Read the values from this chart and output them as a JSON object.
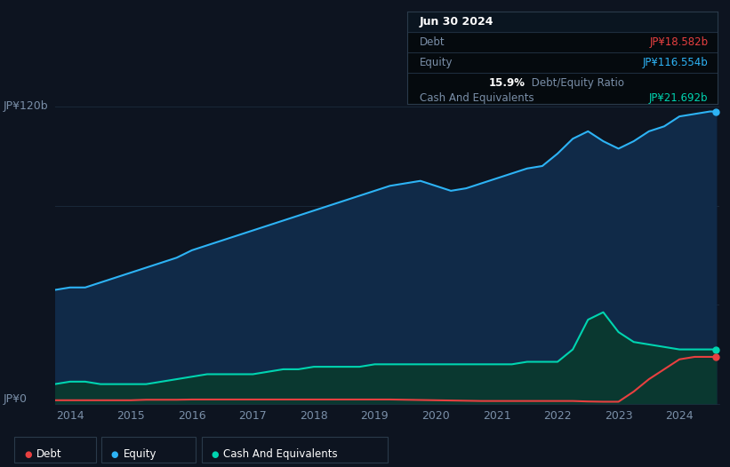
{
  "background_color": "#0d1420",
  "plot_bg_color": "#0d1420",
  "title_box": {
    "date": "Jun 30 2024",
    "debt_label": "Debt",
    "debt_value": "JP¥18.582b",
    "equity_label": "Equity",
    "equity_value": "JP¥116.554b",
    "ratio_value": "15.9%",
    "ratio_label": " Debt/Equity Ratio",
    "cash_label": "Cash And Equivalents",
    "cash_value": "JP¥21.692b"
  },
  "y_label_top": "JP¥120b",
  "y_label_bottom": "JP¥0",
  "x_ticks": [
    "2014",
    "2015",
    "2016",
    "2017",
    "2018",
    "2019",
    "2020",
    "2021",
    "2022",
    "2023",
    "2024"
  ],
  "colors": {
    "debt": "#e84040",
    "equity": "#2db3f5",
    "cash": "#00d4b0",
    "equity_fill": "#102a48",
    "cash_fill": "#0a3830",
    "grid": "#1c2d40",
    "text": "#7a8fa8",
    "text_bright": "#ffffff"
  },
  "equity_data": {
    "x": [
      2013.75,
      2014.0,
      2014.25,
      2014.5,
      2014.75,
      2015.0,
      2015.25,
      2015.5,
      2015.75,
      2016.0,
      2016.25,
      2016.5,
      2016.75,
      2017.0,
      2017.25,
      2017.5,
      2017.75,
      2018.0,
      2018.25,
      2018.5,
      2018.75,
      2019.0,
      2019.25,
      2019.5,
      2019.75,
      2020.0,
      2020.25,
      2020.5,
      2020.75,
      2021.0,
      2021.25,
      2021.5,
      2021.75,
      2022.0,
      2022.25,
      2022.5,
      2022.75,
      2023.0,
      2023.25,
      2023.5,
      2023.75,
      2024.0,
      2024.25,
      2024.5,
      2024.6
    ],
    "y": [
      46,
      47,
      47,
      49,
      51,
      53,
      55,
      57,
      59,
      62,
      64,
      66,
      68,
      70,
      72,
      74,
      76,
      78,
      80,
      82,
      84,
      86,
      88,
      89,
      90,
      88,
      86,
      87,
      89,
      91,
      93,
      95,
      96,
      101,
      107,
      110,
      106,
      103,
      106,
      110,
      112,
      116,
      117,
      118,
      118
    ]
  },
  "cash_data": {
    "x": [
      2013.75,
      2014.0,
      2014.25,
      2014.5,
      2014.75,
      2015.0,
      2015.25,
      2015.5,
      2015.75,
      2016.0,
      2016.25,
      2016.5,
      2016.75,
      2017.0,
      2017.25,
      2017.5,
      2017.75,
      2018.0,
      2018.25,
      2018.5,
      2018.75,
      2019.0,
      2019.25,
      2019.5,
      2019.75,
      2020.0,
      2020.25,
      2020.5,
      2020.75,
      2021.0,
      2021.25,
      2021.5,
      2021.75,
      2022.0,
      2022.25,
      2022.5,
      2022.75,
      2023.0,
      2023.25,
      2023.5,
      2023.75,
      2024.0,
      2024.25,
      2024.5,
      2024.6
    ],
    "y": [
      8,
      9,
      9,
      8,
      8,
      8,
      8,
      9,
      10,
      11,
      12,
      12,
      12,
      12,
      13,
      14,
      14,
      15,
      15,
      15,
      15,
      16,
      16,
      16,
      16,
      16,
      16,
      16,
      16,
      16,
      16,
      17,
      17,
      17,
      22,
      34,
      37,
      29,
      25,
      24,
      23,
      22,
      22,
      22,
      22
    ]
  },
  "debt_data": {
    "x": [
      2013.75,
      2014.0,
      2014.25,
      2014.5,
      2014.75,
      2015.0,
      2015.25,
      2015.5,
      2015.75,
      2016.0,
      2016.25,
      2016.5,
      2016.75,
      2017.0,
      2017.25,
      2017.5,
      2017.75,
      2018.0,
      2018.25,
      2018.5,
      2018.75,
      2019.0,
      2019.25,
      2019.5,
      2019.75,
      2020.0,
      2020.25,
      2020.5,
      2020.75,
      2021.0,
      2021.25,
      2021.5,
      2021.75,
      2022.0,
      2022.25,
      2022.5,
      2022.75,
      2023.0,
      2023.25,
      2023.5,
      2023.75,
      2024.0,
      2024.25,
      2024.5,
      2024.6
    ],
    "y": [
      1.5,
      1.5,
      1.5,
      1.5,
      1.5,
      1.5,
      1.7,
      1.7,
      1.7,
      1.8,
      1.8,
      1.8,
      1.8,
      1.8,
      1.8,
      1.8,
      1.8,
      1.8,
      1.8,
      1.8,
      1.8,
      1.8,
      1.8,
      1.7,
      1.6,
      1.5,
      1.4,
      1.3,
      1.2,
      1.2,
      1.2,
      1.2,
      1.2,
      1.2,
      1.2,
      1.0,
      0.9,
      0.9,
      5,
      10,
      14,
      18,
      19,
      19,
      19
    ]
  },
  "ylim": [
    0,
    130
  ],
  "xlim": [
    2013.75,
    2024.65
  ],
  "grid_lines": [
    40,
    80,
    120
  ]
}
